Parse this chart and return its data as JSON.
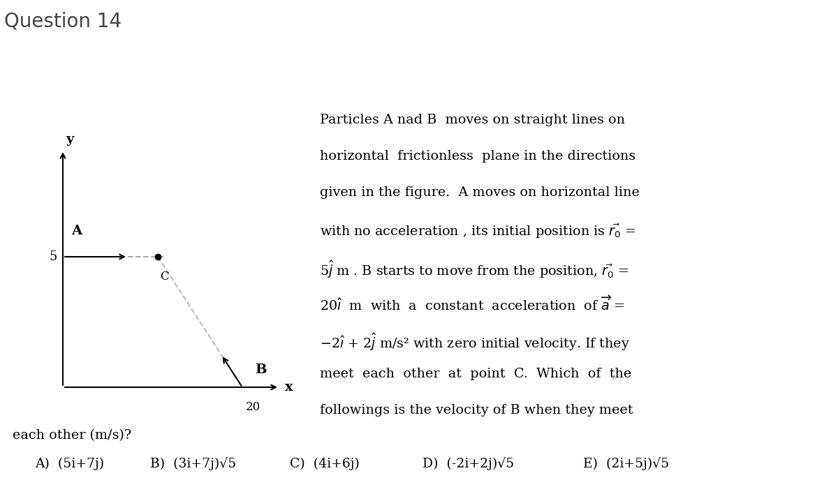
{
  "title": "Question 14",
  "title_bg_color": "#ebebeb",
  "bg_color": "#ffffff",
  "title_fontsize": 20,
  "paragraph_text": [
    "Particles A nad B  moves on straight lines on",
    "horizontal  frictionless  plane in the directions",
    "given in the figure.  A moves on horizontal line",
    "with no acceleration , its initial position is $\\vec{r_0}$ =",
    "5$\\hat{j}$ m . B starts to move from the position, $\\vec{r_0}$ =",
    "20$\\hat{\\imath}$  m  with  a  constant  acceleration  of $\\overrightarrow{a}$ =",
    "$-$2$\\hat{\\imath}$ + 2$\\hat{j}$ m/s² with zero initial velocity. If they",
    "meet  each  other  at  point  C.  Which  of  the",
    "followings is the velocity of B when they meet"
  ],
  "continuation_text": "each other (m/s)?",
  "choices": [
    "A)  (5i+7j)",
    "B)  (3i+7j)√5",
    "C)  (4i+6j)",
    "D)  (-2i+2j)√5",
    "E)  (2i+5j)√5"
  ],
  "diagram": {
    "x_axis_label": "x",
    "y_axis_label": "y",
    "label_20": "20",
    "label_5": "5",
    "label_A": "A",
    "label_B": "B",
    "label_C": "C"
  }
}
